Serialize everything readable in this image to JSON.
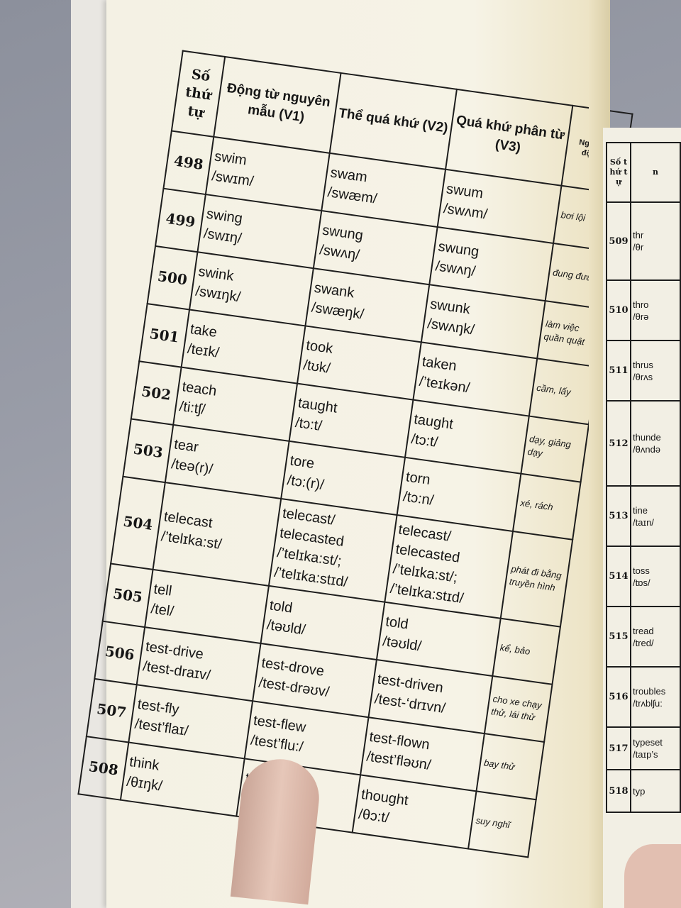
{
  "left_table": {
    "headers": [
      "Số thứ tự",
      "Động từ nguyên mẫu (V1)",
      "Thể quá khứ (V2)",
      "Quá khứ phân từ (V3)",
      "Nghĩa của động từ"
    ],
    "rows": [
      {
        "no": "498",
        "v1": "swim",
        "v1_ipa": "/swɪm/",
        "v2": "swam",
        "v2_ipa": "/swæm/",
        "v3": "swum",
        "v3_ipa": "/swʌm/",
        "meaning": "bơi lội"
      },
      {
        "no": "499",
        "v1": "swing",
        "v1_ipa": "/swɪŋ/",
        "v2": "swung",
        "v2_ipa": "/swʌŋ/",
        "v3": "swung",
        "v3_ipa": "/swʌŋ/",
        "meaning": "đung đưa"
      },
      {
        "no": "500",
        "v1": "swink",
        "v1_ipa": "/swɪŋk/",
        "v2": "swank",
        "v2_ipa": "/swæŋk/",
        "v3": "swunk",
        "v3_ipa": "/swʌŋk/",
        "meaning": "làm việc quần quật"
      },
      {
        "no": "501",
        "v1": "take",
        "v1_ipa": "/teɪk/",
        "v2": "took",
        "v2_ipa": "/tʊk/",
        "v3": "taken",
        "v3_ipa": "/’teɪkən/",
        "meaning": "cầm, lấy"
      },
      {
        "no": "502",
        "v1": "teach",
        "v1_ipa": "/ti:tʃ/",
        "v2": "taught",
        "v2_ipa": "/tɔ:t/",
        "v3": "taught",
        "v3_ipa": "/tɔ:t/",
        "meaning": "dạy, giảng dạy"
      },
      {
        "no": "503",
        "v1": "tear",
        "v1_ipa": "/teə(r)/",
        "v2": "tore",
        "v2_ipa": "/tɔ:(r)/",
        "v3": "torn",
        "v3_ipa": "/tɔ:n/",
        "meaning": "xé, rách"
      },
      {
        "no": "504",
        "v1": "telecast",
        "v1_ipa": "/’telɪka:st/",
        "v2": "telecast/ telecasted",
        "v2_ipa": "/’telɪka:st/; /’telɪka:stɪd/",
        "v3": "telecast/ telecasted",
        "v3_ipa": "/’telɪka:st/; /’telɪka:stɪd/",
        "meaning": "phát đi bằng truyền hình"
      },
      {
        "no": "505",
        "v1": "tell",
        "v1_ipa": "/tel/",
        "v2": "told",
        "v2_ipa": "/təʊld/",
        "v3": "told",
        "v3_ipa": "/təʊld/",
        "meaning": "kể, bảo"
      },
      {
        "no": "506",
        "v1": "test-drive",
        "v1_ipa": "/test-draɪv/",
        "v2": "test-drove",
        "v2_ipa": "/test-drəʊv/",
        "v3": "test-driven",
        "v3_ipa": "/test-‘drɪvn/",
        "meaning": "cho xe chạy thử, lái thử"
      },
      {
        "no": "507",
        "v1": "test-fly",
        "v1_ipa": "/test’flaɪ/",
        "v2": "test-flew",
        "v2_ipa": "/test’flu:/",
        "v3": "test-flown",
        "v3_ipa": "/test’fləʊn/",
        "meaning": "bay thử"
      },
      {
        "no": "508",
        "v1": "think",
        "v1_ipa": "/θɪŋk/",
        "v2": "thought",
        "v2_ipa": "/θɔ:t/",
        "v3": "thought",
        "v3_ipa": "/θɔ:t/",
        "meaning": "suy nghĩ"
      }
    ]
  },
  "right_table": {
    "header_no": "Số thứ tự",
    "header_v1": "n",
    "rows": [
      {
        "no": "509",
        "v1": "thr",
        "v1_ipa": "/θr"
      },
      {
        "no": "510",
        "v1": "thro",
        "v1_ipa": "/θrə"
      },
      {
        "no": "511",
        "v1": "thrus",
        "v1_ipa": "/θrʌs"
      },
      {
        "no": "512",
        "v1": "thunde",
        "v1_ipa": "/θʌndə"
      },
      {
        "no": "513",
        "v1": "tine",
        "v1_ipa": "/taɪn/"
      },
      {
        "no": "514",
        "v1": "toss",
        "v1_ipa": "/tɒs/"
      },
      {
        "no": "515",
        "v1": "tread",
        "v1_ipa": "/tred/"
      },
      {
        "no": "516",
        "v1": "troubles",
        "v1_ipa": "/trʌblʃu:"
      },
      {
        "no": "517",
        "v1": "typeset",
        "v1_ipa": "/taɪp’s"
      },
      {
        "no": "518",
        "v1": "typ",
        "v1_ipa": ""
      }
    ]
  }
}
